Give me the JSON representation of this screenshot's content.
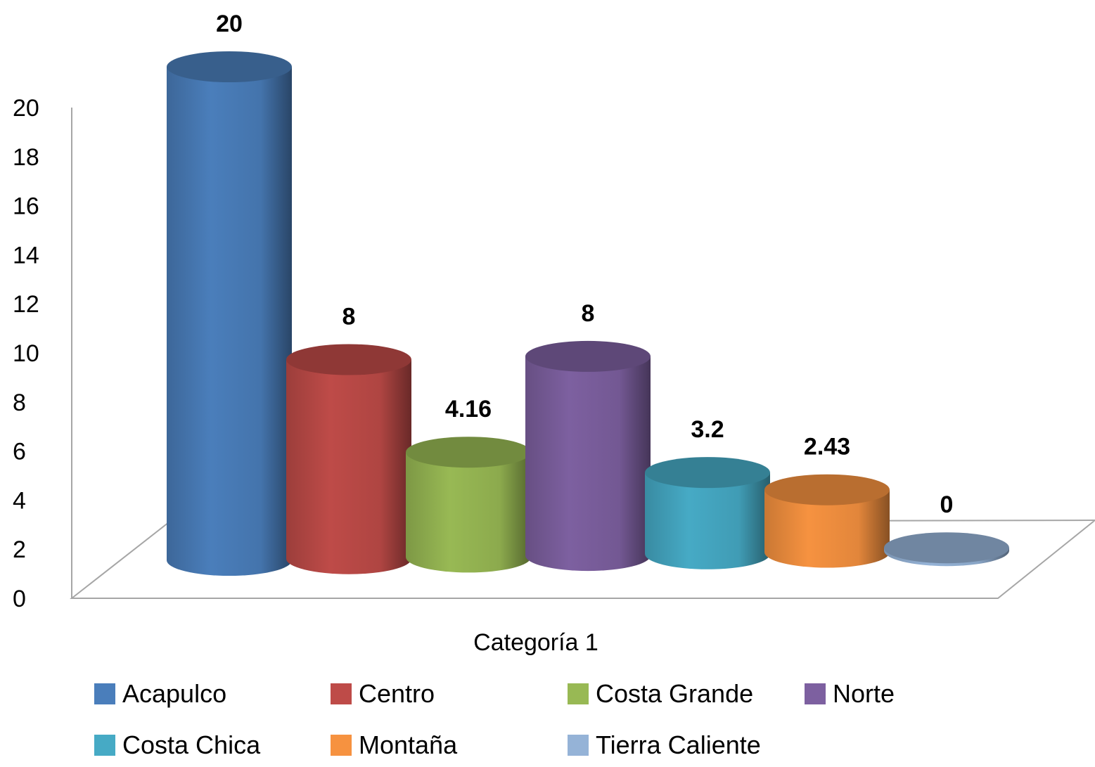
{
  "chart_data": {
    "type": "bar",
    "style": "3d-cylinder",
    "categories": [
      "Categoría 1"
    ],
    "series": [
      {
        "name": "Acapulco",
        "values": [
          20
        ],
        "label": "20",
        "color": "#4A7EBB"
      },
      {
        "name": "Centro",
        "values": [
          8
        ],
        "label": "8",
        "color": "#BE4B48"
      },
      {
        "name": "Costa Grande",
        "values": [
          4.16
        ],
        "label": "4.16",
        "color": "#98B954"
      },
      {
        "name": "Norte",
        "values": [
          8
        ],
        "label": "8",
        "color": "#7D60A0"
      },
      {
        "name": "Costa Chica",
        "values": [
          3.2
        ],
        "label": "3.2",
        "color": "#46AAC5"
      },
      {
        "name": "Montaña",
        "values": [
          2.43
        ],
        "label": "2.43",
        "color": "#F69240"
      },
      {
        "name": "Tierra Caliente",
        "values": [
          0
        ],
        "label": "0",
        "color": "#95B3D7"
      }
    ],
    "xlabel": "",
    "ylabel": "",
    "ylim": [
      0,
      20
    ],
    "yticks": [
      "0",
      "2",
      "4",
      "6",
      "8",
      "10",
      "12",
      "14",
      "16",
      "18",
      "20"
    ],
    "legend": "bottom",
    "grid": false
  }
}
